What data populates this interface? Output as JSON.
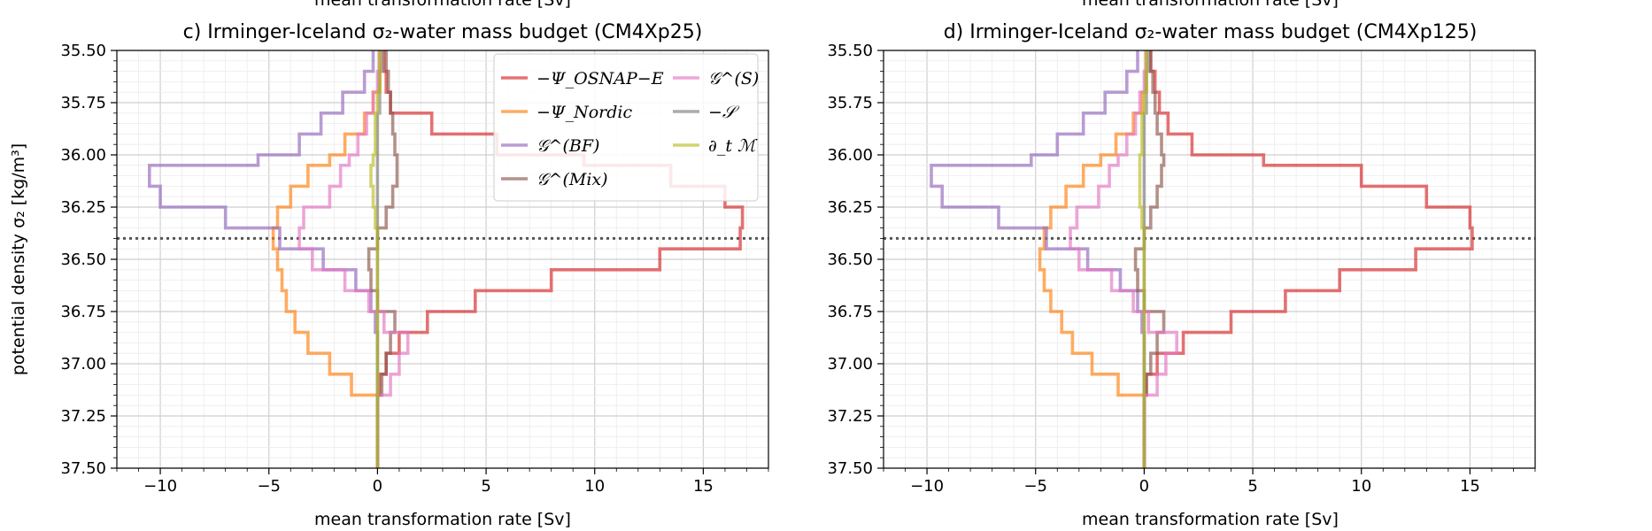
{
  "top_cut_label": "mean transformation rate [Sv]",
  "legend_labels": [
    "−Ψ_OSNAP−E",
    "−Ψ_Nordic",
    "𝒢^(BF)",
    "𝒢^(Mix)",
    "𝒢^(S)",
    "−𝒮",
    "∂_t ℳ"
  ],
  "chart_data": [
    {
      "type": "line",
      "title": "c) Irminger-Iceland σ₂-water mass budget (CM4Xp25)",
      "xlabel": "mean transformation rate [Sv]",
      "ylabel": "potential density σ₂ [kg/m³]",
      "xlim": [
        -12,
        18
      ],
      "ylim": [
        37.5,
        35.5
      ],
      "xticks": [
        -10,
        -5,
        0,
        5,
        10,
        15
      ],
      "yticks": [
        35.5,
        35.75,
        36.0,
        36.25,
        36.5,
        36.75,
        37.0,
        37.25,
        37.5
      ],
      "hline": 36.4,
      "grid": true,
      "legend_position": "top-right",
      "sigma_edges": [
        35.5,
        35.6,
        35.7,
        35.8,
        35.9,
        36.0,
        36.05,
        36.15,
        36.25,
        36.35,
        36.45,
        36.55,
        36.65,
        36.75,
        36.85,
        36.95,
        37.05,
        37.15,
        37.5
      ],
      "series": [
        {
          "name": "−Ψ_OSNAP−E",
          "color": "#d62728",
          "values": [
            0.3,
            0.4,
            0.6,
            2.5,
            5.5,
            9.5,
            13.5,
            16.0,
            16.8,
            16.7,
            13.0,
            8.0,
            4.5,
            2.3,
            1.0,
            0.4,
            0.1,
            0.0
          ]
        },
        {
          "name": "−Ψ_Nordic",
          "color": "#ff7f0e",
          "values": [
            0.1,
            0.1,
            -0.2,
            -0.6,
            -1.5,
            -2.2,
            -3.2,
            -4.0,
            -4.6,
            -4.8,
            -4.6,
            -4.4,
            -4.2,
            -3.8,
            -3.2,
            -2.2,
            -1.2,
            0.0
          ]
        },
        {
          "name": "𝒢^(BF)",
          "color": "#9467bd",
          "values": [
            -0.2,
            -0.6,
            -1.6,
            -2.6,
            -3.6,
            -5.5,
            -10.5,
            -10.0,
            -7.0,
            -4.5,
            -2.5,
            -1.0,
            -0.3,
            -0.1,
            0.0,
            0.0,
            0.0,
            0.0
          ]
        },
        {
          "name": "𝒢^(Mix)",
          "color": "#8c564b",
          "values": [
            0.4,
            0.5,
            0.6,
            0.7,
            0.8,
            0.9,
            0.9,
            0.7,
            0.4,
            0.0,
            -0.4,
            -0.3,
            0.0,
            0.8,
            0.6,
            0.4,
            0.2,
            0.0
          ]
        },
        {
          "name": "𝒢^(S)",
          "color": "#e377c2",
          "values": [
            0.1,
            0.0,
            -0.2,
            -0.5,
            -0.9,
            -1.3,
            -1.7,
            -2.2,
            -3.4,
            -3.6,
            -3.0,
            -1.5,
            -0.4,
            0.3,
            1.4,
            1.0,
            0.6,
            0.0
          ]
        },
        {
          "name": "−𝒮",
          "color": "#7f7f7f",
          "values": [
            0.2,
            0.1,
            0.1,
            0.0,
            0.0,
            0.0,
            0.0,
            0.0,
            0.0,
            0.0,
            0.0,
            0.0,
            0.0,
            0.0,
            0.0,
            0.0,
            0.0,
            0.0
          ]
        },
        {
          "name": "∂_t ℳ",
          "color": "#bcbd22",
          "values": [
            0.1,
            0.1,
            0.0,
            -0.1,
            -0.1,
            -0.2,
            -0.3,
            -0.2,
            -0.1,
            0.0,
            0.0,
            0.0,
            0.0,
            0.0,
            0.0,
            0.0,
            0.0,
            0.0
          ]
        }
      ]
    },
    {
      "type": "line",
      "title": "d) Irminger-Iceland σ₂-water mass budget (CM4Xp125)",
      "xlabel": "mean transformation rate [Sv]",
      "ylabel": "",
      "xlim": [
        -12,
        18
      ],
      "ylim": [
        37.5,
        35.5
      ],
      "xticks": [
        -10,
        -5,
        0,
        5,
        10,
        15
      ],
      "yticks": [
        35.5,
        35.75,
        36.0,
        36.25,
        36.5,
        36.75,
        37.0,
        37.25,
        37.5
      ],
      "hline": 36.4,
      "grid": true,
      "sigma_edges": [
        35.5,
        35.6,
        35.7,
        35.8,
        35.9,
        36.0,
        36.05,
        36.15,
        36.25,
        36.35,
        36.45,
        36.55,
        36.65,
        36.75,
        36.85,
        36.95,
        37.05,
        37.15,
        37.5
      ],
      "series": [
        {
          "name": "−Ψ_OSNAP−E",
          "color": "#d62728",
          "values": [
            0.3,
            0.5,
            0.7,
            1.1,
            2.2,
            5.5,
            10.0,
            13.0,
            15.0,
            15.1,
            12.5,
            9.0,
            6.5,
            4.0,
            1.8,
            0.6,
            0.1,
            0.0
          ]
        },
        {
          "name": "−Ψ_Nordic",
          "color": "#ff7f0e",
          "values": [
            0.1,
            0.1,
            -0.1,
            -0.5,
            -1.3,
            -2.0,
            -2.8,
            -3.6,
            -4.3,
            -4.6,
            -4.8,
            -4.6,
            -4.3,
            -3.8,
            -3.3,
            -2.4,
            -1.2,
            0.0
          ]
        },
        {
          "name": "𝒢^(BF)",
          "color": "#9467bd",
          "values": [
            -0.3,
            -0.8,
            -1.8,
            -2.8,
            -4.0,
            -5.2,
            -9.8,
            -9.3,
            -6.7,
            -4.5,
            -2.6,
            -1.1,
            -0.3,
            -0.1,
            0.0,
            0.0,
            0.0,
            0.0
          ]
        },
        {
          "name": "𝒢^(Mix)",
          "color": "#8c564b",
          "values": [
            0.3,
            0.4,
            0.5,
            0.6,
            0.8,
            0.9,
            0.8,
            0.6,
            0.3,
            0.0,
            -0.4,
            -0.3,
            0.0,
            0.9,
            0.6,
            0.3,
            0.1,
            0.0
          ]
        },
        {
          "name": "𝒢^(S)",
          "color": "#e377c2",
          "values": [
            0.1,
            0.0,
            -0.2,
            -0.4,
            -0.8,
            -1.2,
            -1.6,
            -2.1,
            -3.1,
            -3.4,
            -3.0,
            -1.5,
            -0.5,
            0.2,
            1.5,
            1.0,
            0.6,
            0.0
          ]
        },
        {
          "name": "−𝒮",
          "color": "#7f7f7f",
          "values": [
            0.2,
            0.1,
            0.1,
            0.0,
            0.0,
            0.0,
            0.0,
            0.0,
            0.0,
            0.0,
            0.0,
            0.0,
            0.0,
            0.0,
            0.0,
            0.0,
            0.0,
            0.0
          ]
        },
        {
          "name": "∂_t ℳ",
          "color": "#bcbd22",
          "values": [
            0.1,
            0.1,
            0.0,
            -0.1,
            -0.1,
            -0.2,
            -0.2,
            -0.2,
            -0.1,
            0.0,
            0.0,
            0.0,
            0.0,
            0.0,
            0.0,
            0.0,
            0.0,
            0.0
          ]
        }
      ]
    }
  ]
}
